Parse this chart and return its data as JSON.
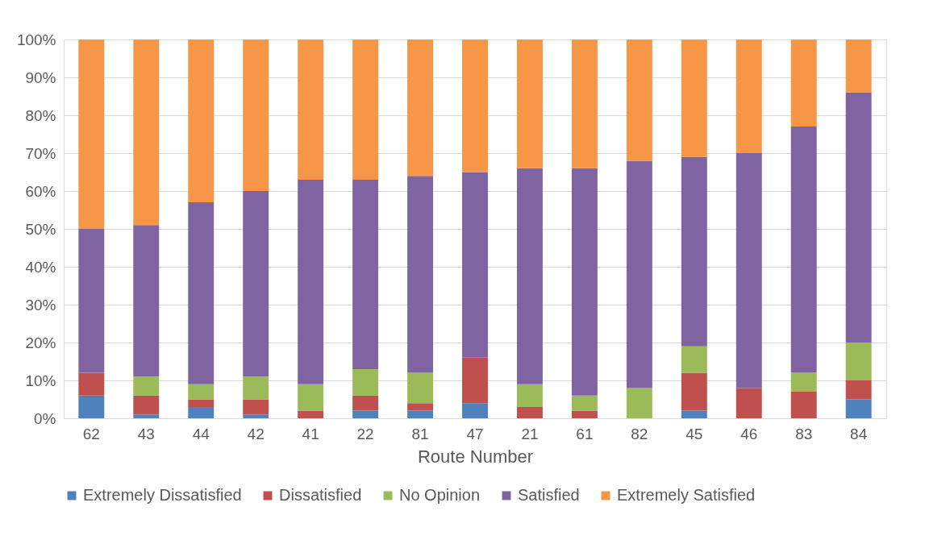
{
  "chart_data": {
    "type": "bar",
    "stacked": true,
    "xlabel": "Route Number",
    "categories": [
      "62",
      "43",
      "44",
      "42",
      "41",
      "22",
      "81",
      "47",
      "21",
      "61",
      "82",
      "45",
      "46",
      "83",
      "84"
    ],
    "series": [
      {
        "name": "Extremely Dissatisfied",
        "color": "#4f81bd",
        "values": [
          6,
          1,
          3,
          1,
          0,
          2,
          2,
          4,
          0,
          0,
          0,
          2,
          0,
          0,
          5
        ]
      },
      {
        "name": "Dissatisfied",
        "color": "#c0504d",
        "values": [
          6,
          5,
          2,
          4,
          2,
          4,
          2,
          12,
          3,
          2,
          0,
          10,
          8,
          7,
          5
        ]
      },
      {
        "name": "No Opinion",
        "color": "#9bbb59",
        "values": [
          0,
          5,
          4,
          6,
          7,
          7,
          8,
          0,
          6,
          4,
          8,
          7,
          0,
          5,
          10
        ]
      },
      {
        "name": "Satisfied",
        "color": "#8064a2",
        "values": [
          38,
          40,
          48,
          49,
          54,
          50,
          52,
          49,
          57,
          60,
          60,
          50,
          62,
          65,
          66
        ]
      },
      {
        "name": "Extremely Satisfied",
        "color": "#f79646",
        "values": [
          50,
          49,
          43,
          40,
          37,
          37,
          36,
          35,
          34,
          34,
          32,
          31,
          30,
          23,
          14
        ]
      }
    ],
    "ylim": [
      0,
      100
    ],
    "yticks": [
      {
        "value": 0,
        "label": "0%"
      },
      {
        "value": 10,
        "label": "10%"
      },
      {
        "value": 20,
        "label": "20%"
      },
      {
        "value": 30,
        "label": "30%"
      },
      {
        "value": 40,
        "label": "40%"
      },
      {
        "value": 50,
        "label": "50%"
      },
      {
        "value": 60,
        "label": "60%"
      },
      {
        "value": 70,
        "label": "70%"
      },
      {
        "value": 80,
        "label": "80%"
      },
      {
        "value": 90,
        "label": "90%"
      },
      {
        "value": 100,
        "label": "100%"
      }
    ],
    "grid": "y",
    "legend": "bottom"
  }
}
